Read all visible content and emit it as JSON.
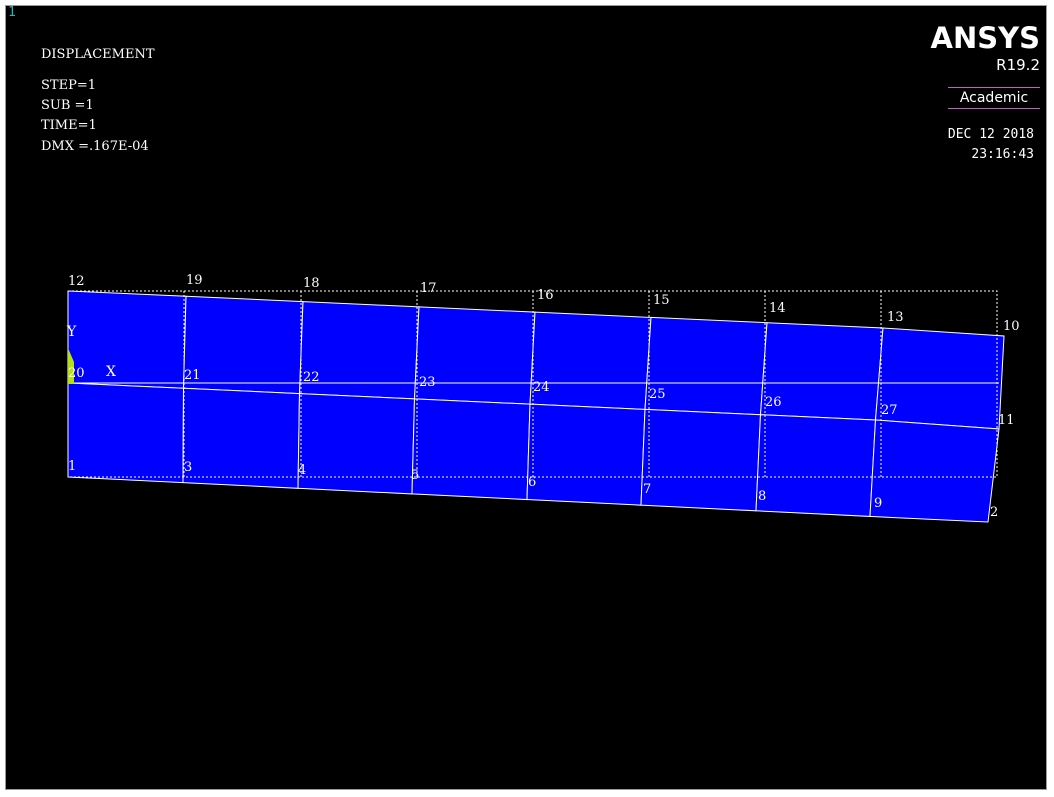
{
  "window": {
    "number": "1"
  },
  "plot": {
    "title": "DISPLACEMENT",
    "info": [
      "STEP=1",
      "SUB =1",
      "TIME=1",
      "DMX =.167E-04"
    ]
  },
  "brand": {
    "logo": "ANSYS",
    "version": "R19.2",
    "edition": "Academic"
  },
  "timestamp": {
    "date": "DEC 12 2018",
    "time": "23:16:43"
  },
  "axes": {
    "y": "Y",
    "x": "X"
  },
  "colors": {
    "background": "#000000",
    "element_fill": "#0000ff",
    "edge": "#ffffff",
    "undeformed": "#ffffff",
    "constraint": "#b4e014",
    "window_number": "#26b6c6",
    "edition_rule": "#c060c0"
  },
  "nodes": [
    "12",
    "19",
    "18",
    "17",
    "16",
    "15",
    "14",
    "13",
    "10",
    "20",
    "21",
    "22",
    "23",
    "24",
    "25",
    "26",
    "27",
    "11",
    "1",
    "3",
    "4",
    "5",
    "6",
    "7",
    "8",
    "9",
    "2"
  ]
}
